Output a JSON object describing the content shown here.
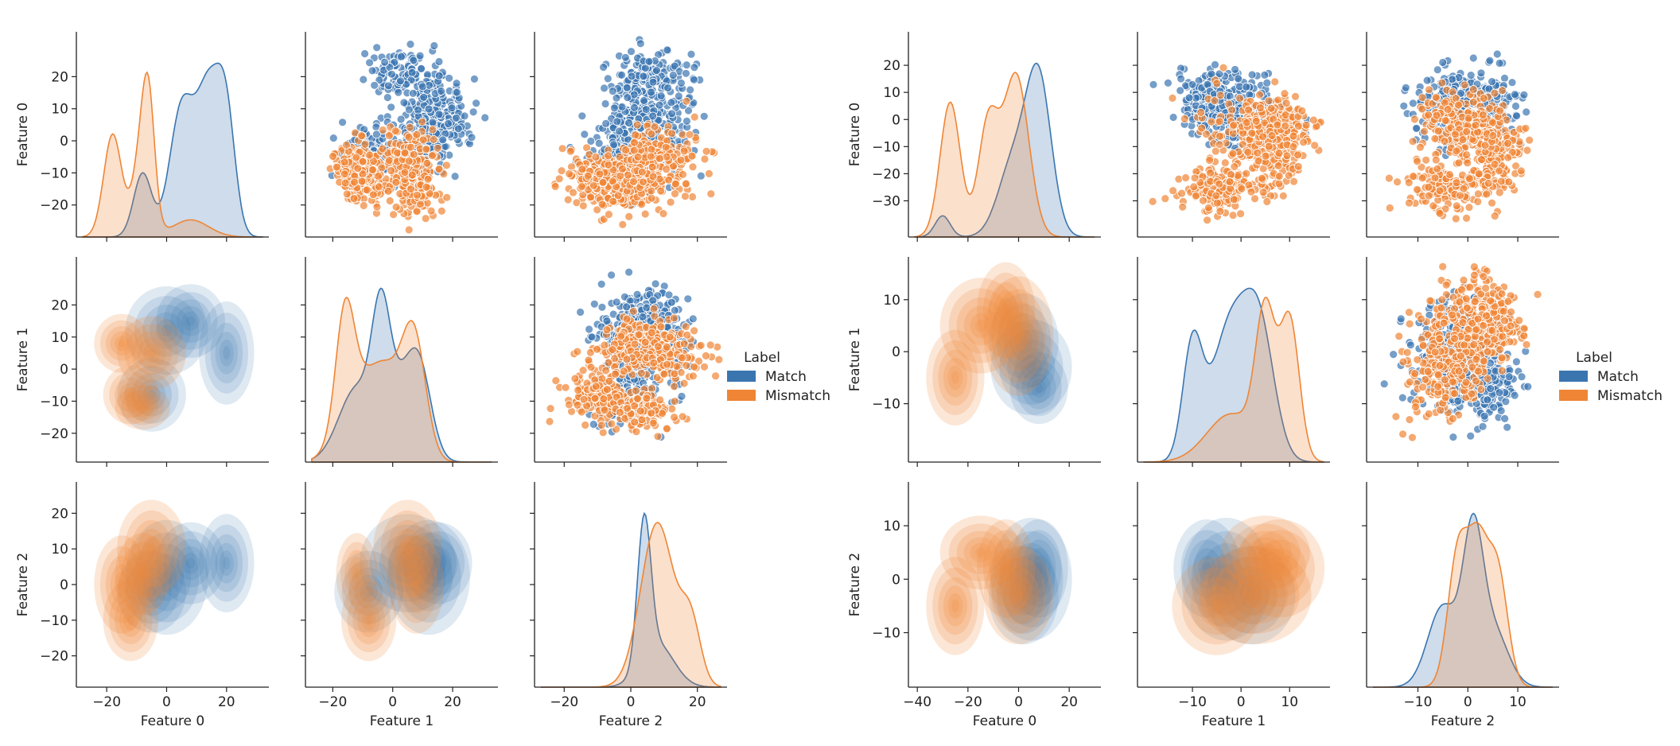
{
  "colors": {
    "match": "#3a75b0",
    "mismatch": "#ef8535"
  },
  "chart_data": [
    {
      "type": "pairplot",
      "panel": "left",
      "features": [
        "Feature 0",
        "Feature 1",
        "Feature 2"
      ],
      "ranges": [
        [
          -28,
          32
        ],
        [
          -27,
          33
        ],
        [
          -27,
          27
        ]
      ],
      "ticks": [
        [
          -20,
          -10,
          0,
          10,
          20
        ],
        [
          -20,
          -10,
          0,
          10,
          20
        ],
        [
          -20,
          -10,
          0,
          10,
          20
        ]
      ],
      "xticks": [
        [
          -20,
          0,
          20
        ],
        [
          -20,
          0,
          20
        ],
        [
          -20,
          0,
          20
        ]
      ],
      "diag_scale": [
        1.0,
        1.0,
        1.0
      ],
      "legend": {
        "title": "Label",
        "entries": [
          "Match",
          "Mismatch"
        ],
        "placement": "right"
      },
      "series": [
        {
          "name": "Match",
          "clusters": [
            {
              "mean": [
                0,
                12,
                2
              ],
              "sd": [
                6,
                6,
                7
              ]
            },
            {
              "mean": [
                8,
                15,
                6
              ],
              "sd": [
                5,
                5,
                5
              ]
            },
            {
              "mean": [
                20,
                5,
                6
              ],
              "sd": [
                4,
                7,
                6
              ]
            },
            {
              "mean": [
                -5,
                -8,
                -2
              ],
              "sd": [
                5,
                5,
                5
              ]
            }
          ],
          "diag": [
            {
              "mu": -8,
              "sd": 3,
              "w": 0.12
            },
            {
              "mu": 5,
              "sd": 4,
              "w": 0.32
            },
            {
              "mu": 14,
              "sd": 4,
              "w": 0.36
            },
            {
              "mu": 20,
              "sd": 3,
              "w": 0.2
            },
            {
              "mu": -12,
              "sd": 6,
              "w": 0.4
            },
            {
              "mu": 2,
              "sd": 5,
              "w": 0.3
            },
            {
              "mu": 9,
              "sd": 4,
              "w": 0.3
            },
            {
              "mu": -4,
              "sd": 3,
              "w": 0.3
            },
            {
              "mu": 4,
              "sd": 2,
              "w": 0.4
            },
            {
              "mu": 8,
              "sd": 5,
              "w": 0.3
            }
          ]
        },
        {
          "name": "Mismatch",
          "clusters": [
            {
              "mean": [
                -15,
                8,
                0
              ],
              "sd": [
                4,
                4,
                6
              ]
            },
            {
              "mean": [
                -12,
                -8,
                -10
              ],
              "sd": [
                4,
                4,
                5
              ]
            },
            {
              "mean": [
                -5,
                5,
                10
              ],
              "sd": [
                5,
                5,
                6
              ]
            },
            {
              "mean": [
                -8,
                -12,
                3
              ],
              "sd": [
                4,
                3,
                5
              ]
            }
          ],
          "diag": [
            {
              "mu": -18,
              "sd": 3,
              "w": 0.45
            },
            {
              "mu": -8,
              "sd": 3,
              "w": 0.4
            },
            {
              "mu": 8,
              "sd": 6,
              "w": 0.15
            },
            {
              "mu": -6,
              "sd": 2,
              "w": 0.25
            },
            {
              "mu": -12,
              "sd": 6,
              "w": 0.35
            },
            {
              "mu": 7,
              "sd": 4,
              "w": 0.4
            },
            {
              "mu": -16,
              "sd": 3,
              "w": 0.25
            },
            {
              "mu": -2,
              "sd": 5,
              "w": 0.3
            },
            {
              "mu": 8,
              "sd": 5,
              "w": 0.45
            },
            {
              "mu": 18,
              "sd": 3,
              "w": 0.1
            }
          ]
        }
      ]
    },
    {
      "type": "pairplot",
      "panel": "right",
      "features": [
        "Feature 0",
        "Feature 1",
        "Feature 2"
      ],
      "ranges": [
        [
          -41,
          30
        ],
        [
          -20,
          17
        ],
        [
          -19,
          17
        ]
      ],
      "ticks": [
        [
          -30,
          -20,
          -10,
          0,
          10,
          20
        ],
        [
          -10,
          0,
          10
        ],
        [
          -10,
          0,
          10
        ]
      ],
      "xticks": [
        [
          -40,
          -20,
          0,
          20
        ],
        [
          -10,
          0,
          10
        ],
        [
          -10,
          0,
          10
        ]
      ],
      "diag_scale": [
        1.0,
        1.0,
        1.0
      ],
      "legend": {
        "title": "Label",
        "entries": [
          "Match",
          "Mismatch"
        ],
        "placement": "right"
      },
      "series": [
        {
          "name": "Match",
          "clusters": [
            {
              "mean": [
                5,
                -3,
                0
              ],
              "sd": [
                7,
                4,
                5
              ]
            },
            {
              "mean": [
                8,
                -7,
                2
              ],
              "sd": [
                5,
                3,
                4
              ]
            },
            {
              "mean": [
                2,
                2,
                -3
              ],
              "sd": [
                6,
                4,
                4
              ]
            }
          ],
          "diag": [
            {
              "mu": 8,
              "sd": 5,
              "w": 0.6
            },
            {
              "mu": -2,
              "sd": 6,
              "w": 0.35
            },
            {
              "mu": -30,
              "sd": 3,
              "w": 0.05
            },
            {
              "mu": -10,
              "sd": 2,
              "w": 0.2
            },
            {
              "mu": -2,
              "sd": 4,
              "w": 0.5
            },
            {
              "mu": 4,
              "sd": 3,
              "w": 0.3
            },
            {
              "mu": -5,
              "sd": 3,
              "w": 0.35
            },
            {
              "mu": 1,
              "sd": 2,
              "w": 0.4
            },
            {
              "mu": 5,
              "sd": 3,
              "w": 0.25
            }
          ]
        },
        {
          "name": "Mismatch",
          "clusters": [
            {
              "mean": [
                -15,
                5,
                5
              ],
              "sd": [
                7,
                4,
                3
              ]
            },
            {
              "mean": [
                -5,
                8,
                2
              ],
              "sd": [
                5,
                4,
                4
              ]
            },
            {
              "mean": [
                0,
                3,
                -3
              ],
              "sd": [
                6,
                5,
                4
              ]
            },
            {
              "mean": [
                -25,
                -5,
                -5
              ],
              "sd": [
                5,
                4,
                4
              ]
            }
          ],
          "diag": [
            {
              "mu": -27,
              "sd": 4,
              "w": 0.3
            },
            {
              "mu": -12,
              "sd": 4,
              "w": 0.25
            },
            {
              "mu": -1,
              "sd": 5,
              "w": 0.45
            },
            {
              "mu": 5,
              "sd": 2,
              "w": 0.35
            },
            {
              "mu": 10,
              "sd": 2,
              "w": 0.35
            },
            {
              "mu": -2,
              "sd": 5,
              "w": 0.3
            },
            {
              "mu": -2,
              "sd": 2,
              "w": 0.35
            },
            {
              "mu": 2,
              "sd": 2,
              "w": 0.35
            },
            {
              "mu": 6,
              "sd": 2,
              "w": 0.3
            }
          ]
        }
      ]
    }
  ]
}
